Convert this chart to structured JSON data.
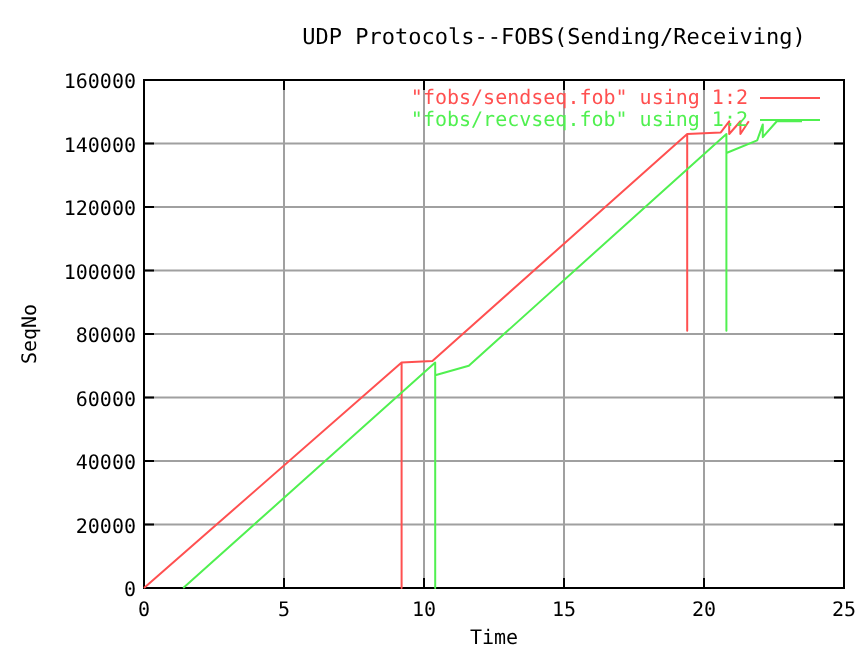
{
  "chart_data": {
    "type": "line",
    "title": "UDP Protocols--FOBS(Sending/Receiving)",
    "xlabel": "Time",
    "ylabel": "SeqNo",
    "xlim": [
      0,
      25
    ],
    "ylim": [
      0,
      160000
    ],
    "xticks": [
      0,
      5,
      10,
      15,
      20,
      25
    ],
    "yticks": [
      0,
      20000,
      40000,
      60000,
      80000,
      100000,
      120000,
      140000,
      160000
    ],
    "grid": true,
    "legend": "top right",
    "line_style": "solid",
    "marker": "none",
    "series": [
      {
        "name": "\"fobs/sendseq.fob\" using 1:2",
        "color": "#ff5050",
        "x": [
          0,
          9.2,
          9.2,
          9.2,
          10.3,
          19.4,
          19.4,
          19.4,
          20.6,
          20.9,
          20.9,
          21.3,
          21.3,
          21.6
        ],
        "values": [
          0,
          71000,
          0,
          71000,
          71500,
          143000,
          81000,
          143000,
          143500,
          147000,
          143000,
          147000,
          143000,
          147000
        ]
      },
      {
        "name": "\"fobs/recvseq.fob\" using 1:2",
        "color": "#50f050",
        "x": [
          1.4,
          10.4,
          10.4,
          10.4,
          11.6,
          20.8,
          20.8,
          20.8,
          21.9,
          22.1,
          22.1,
          22.6,
          23.5
        ],
        "values": [
          0,
          71000,
          0,
          67000,
          70000,
          143000,
          81000,
          137000,
          141000,
          146000,
          142000,
          147000,
          147000
        ]
      }
    ]
  }
}
